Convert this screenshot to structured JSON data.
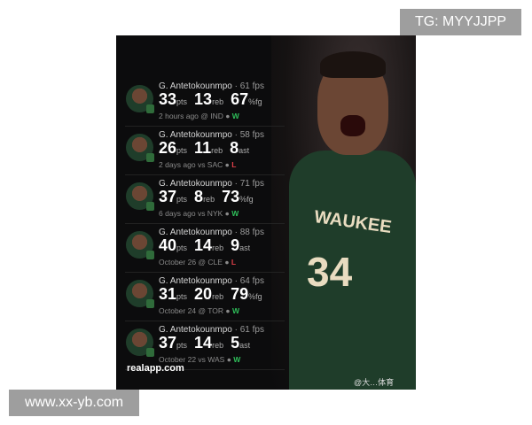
{
  "watermark_top": "TG: MYYJJPP",
  "watermark_bottom": "www.xx-yb.com",
  "site": "realapp.com",
  "weibo": "@大…体育",
  "jersey": {
    "text": "WAUKEE",
    "number": "34"
  },
  "games": [
    {
      "name": "G. Antetokounmpo",
      "fps": "· 61 fps",
      "s1": "33",
      "l1": "pts",
      "s2": "13",
      "l2": "reb",
      "s3": "67",
      "l3": "%fg",
      "when": "2 hours ago @ IND",
      "result": "W"
    },
    {
      "name": "G. Antetokounmpo",
      "fps": "· 58 fps",
      "s1": "26",
      "l1": "pts",
      "s2": "11",
      "l2": "reb",
      "s3": "8",
      "l3": "ast",
      "when": "2 days ago vs SAC",
      "result": "L"
    },
    {
      "name": "G. Antetokounmpo",
      "fps": "· 71 fps",
      "s1": "37",
      "l1": "pts",
      "s2": "8",
      "l2": "reb",
      "s3": "73",
      "l3": "%fg",
      "when": "6 days ago vs NYK",
      "result": "W"
    },
    {
      "name": "G. Antetokounmpo",
      "fps": "· 88 fps",
      "s1": "40",
      "l1": "pts",
      "s2": "14",
      "l2": "reb",
      "s3": "9",
      "l3": "ast",
      "when": "October 26 @ CLE",
      "result": "L"
    },
    {
      "name": "G. Antetokounmpo",
      "fps": "· 64 fps",
      "s1": "31",
      "l1": "pts",
      "s2": "20",
      "l2": "reb",
      "s3": "79",
      "l3": "%fg",
      "when": "October 24 @ TOR",
      "result": "W"
    },
    {
      "name": "G. Antetokounmpo",
      "fps": "· 61 fps",
      "s1": "37",
      "l1": "pts",
      "s2": "14",
      "l2": "reb",
      "s3": "5",
      "l3": "ast",
      "when": "October 22 vs WAS",
      "result": "W"
    }
  ]
}
